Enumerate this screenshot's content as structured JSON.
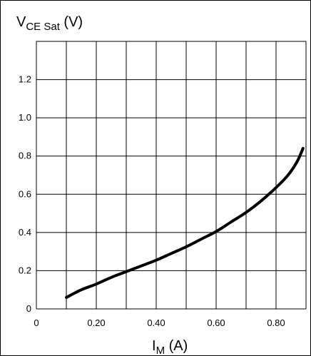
{
  "chart_data": {
    "type": "line",
    "ylabel_main": "V",
    "ylabel_sub": "CE Sat",
    "ylabel_unit": " (V)",
    "xlabel_main": "I",
    "xlabel_sub": "M",
    "xlabel_unit": " (A)",
    "xlim": [
      0,
      0.9
    ],
    "ylim": [
      0,
      1.4
    ],
    "x_ticks": [
      0,
      0.2,
      0.4,
      0.6,
      0.8
    ],
    "x_tick_labels": [
      "0",
      "0.20",
      "0.40",
      "0.60",
      "0.80"
    ],
    "y_ticks": [
      0,
      0.2,
      0.4,
      0.6,
      0.8,
      1.0,
      1.2
    ],
    "y_tick_labels": [
      "0",
      "0.2",
      "0.4",
      "0.6",
      "0.8",
      "1.0",
      "1.2"
    ],
    "x_gridlines": [
      0,
      0.1,
      0.2,
      0.3,
      0.4,
      0.5,
      0.6,
      0.7,
      0.8,
      0.9
    ],
    "y_gridlines": [
      0,
      0.2,
      0.4,
      0.6,
      0.8,
      1.0,
      1.2,
      1.4
    ],
    "grid": true,
    "series": [
      {
        "color": "#000000",
        "x": [
          0.1,
          0.15,
          0.2,
          0.25,
          0.3,
          0.35,
          0.4,
          0.45,
          0.5,
          0.55,
          0.6,
          0.65,
          0.7,
          0.75,
          0.8,
          0.84,
          0.87,
          0.89
        ],
        "y": [
          0.06,
          0.1,
          0.13,
          0.165,
          0.195,
          0.225,
          0.255,
          0.29,
          0.325,
          0.365,
          0.405,
          0.455,
          0.505,
          0.565,
          0.635,
          0.7,
          0.77,
          0.84
        ]
      }
    ]
  }
}
